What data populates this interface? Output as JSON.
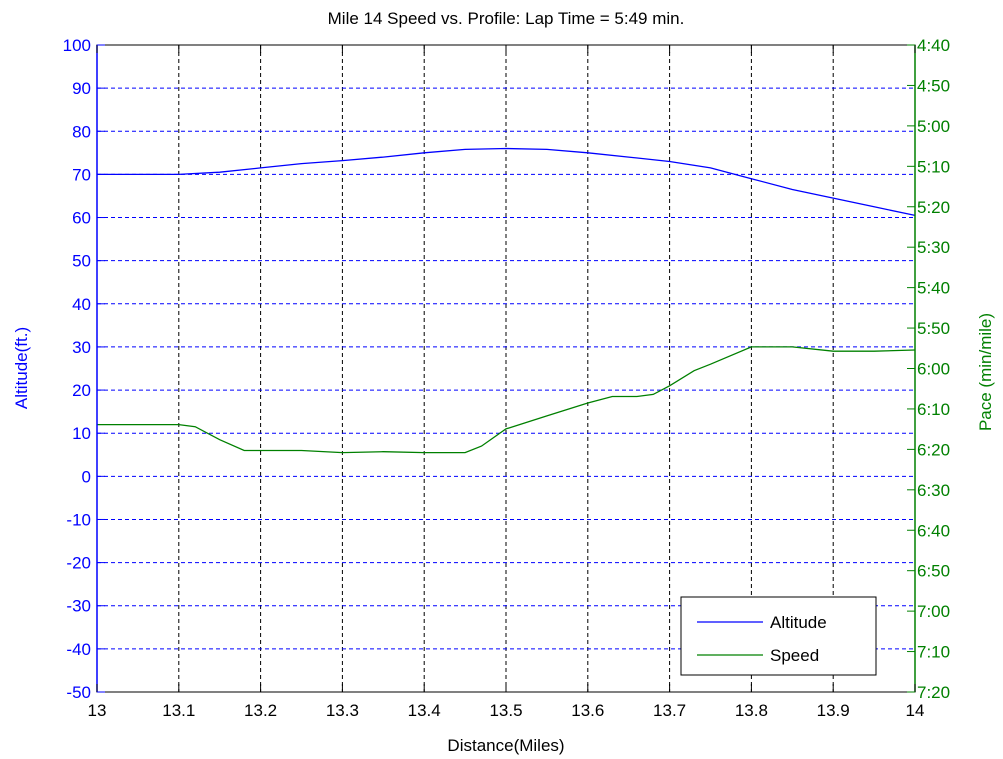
{
  "chart_data": {
    "type": "line",
    "title": "Mile 14 Speed vs. Profile:  Lap Time = 5:49 min.",
    "xlabel": "Distance(Miles)",
    "ylabel_left": "Altitude(ft.)",
    "ylabel_right": "Pace (min/mile)",
    "xlim": [
      13,
      14
    ],
    "ylim_left": [
      -50,
      100
    ],
    "x_ticks": [
      "13",
      "13.1",
      "13.2",
      "13.3",
      "13.4",
      "13.5",
      "13.6",
      "13.7",
      "13.8",
      "13.9",
      "14"
    ],
    "y_ticks_left": [
      "100",
      "90",
      "80",
      "70",
      "60",
      "50",
      "40",
      "30",
      "20",
      "10",
      "0",
      "-10",
      "-20",
      "-30",
      "-40",
      "-50"
    ],
    "y_ticks_right": [
      "4:40",
      "4:50",
      "5:00",
      "5:10",
      "5:20",
      "5:30",
      "5:40",
      "5:50",
      "6:00",
      "6:10",
      "6:20",
      "6:30",
      "6:40",
      "6:50",
      "7:00",
      "7:10",
      "7:20"
    ],
    "grid": true,
    "legend_position": "bottom-right",
    "colors": {
      "left_axis": "#0000ff",
      "right_axis": "#008000",
      "altitude": "#0000ff",
      "speed": "#008000",
      "grid": "#000000"
    },
    "series": [
      {
        "name": "Altitude",
        "axis": "left",
        "x": [
          13.0,
          13.05,
          13.1,
          13.15,
          13.2,
          13.25,
          13.3,
          13.35,
          13.4,
          13.45,
          13.5,
          13.55,
          13.6,
          13.65,
          13.7,
          13.75,
          13.8,
          13.85,
          13.9,
          13.95,
          14.0
        ],
        "y": [
          70,
          70,
          70,
          70.5,
          71.5,
          72.5,
          73.2,
          74,
          75,
          75.8,
          76,
          75.8,
          75,
          74,
          73,
          71.5,
          69,
          66.5,
          64.5,
          62.5,
          60.5
        ]
      },
      {
        "name": "Speed",
        "axis": "left",
        "x": [
          13.0,
          13.05,
          13.1,
          13.12,
          13.15,
          13.18,
          13.25,
          13.3,
          13.35,
          13.4,
          13.45,
          13.47,
          13.5,
          13.55,
          13.6,
          13.63,
          13.66,
          13.68,
          13.7,
          13.73,
          13.75,
          13.8,
          13.85,
          13.9,
          13.95,
          14.0
        ],
        "y": [
          12,
          12,
          12,
          11.5,
          8.5,
          6,
          6,
          5.5,
          5.7,
          5.5,
          5.5,
          7,
          11,
          14,
          17,
          18.5,
          18.5,
          19,
          21,
          24.5,
          26,
          30,
          30,
          29,
          29,
          29.3
        ]
      }
    ]
  }
}
